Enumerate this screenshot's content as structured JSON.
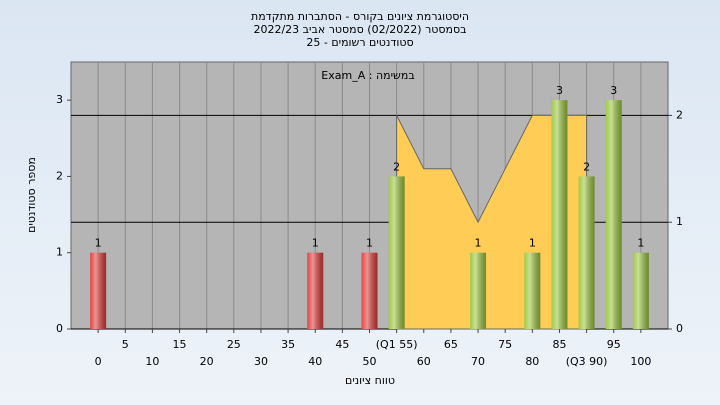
{
  "chart_data": {
    "type": "bar",
    "title": [
      "היסטוגרמת ציונים בקורס - הסתברות מתקדמת",
      "בסמסטר  (02/2022)  סמסטר אביב 2022/23",
      "סטודנטים רשומים - 25"
    ],
    "annotation": "Exam_A : במשימה",
    "xlabel": "טווח ציונים",
    "ylabel": "מספר סטודנטים",
    "x": [
      0,
      40,
      50,
      55,
      70,
      80,
      85,
      90,
      95,
      100
    ],
    "values": [
      1,
      1,
      1,
      2,
      1,
      1,
      3,
      2,
      3,
      1
    ],
    "colors": [
      "#e03a3a",
      "#e03a3a",
      "#e03a3a",
      "#9cc63e",
      "#9cc63e",
      "#9cc63e",
      "#9cc63e",
      "#9cc63e",
      "#9cc63e",
      "#9cc63e"
    ],
    "area": {
      "x": [
        55,
        60,
        65,
        70,
        75,
        80,
        85,
        90
      ],
      "values": [
        2,
        1.5,
        1.5,
        1,
        1.5,
        2,
        2,
        2
      ],
      "color": "#ffcc55",
      "axis": "y2"
    },
    "xlim": [
      -5,
      105
    ],
    "xticks": [
      0,
      5,
      10,
      15,
      20,
      25,
      30,
      35,
      40,
      45,
      50,
      {
        "value": 55,
        "label": "(Q1 55)"
      },
      60,
      65,
      70,
      75,
      80,
      85,
      {
        "value": 90,
        "label": "(Q3 90)"
      },
      95,
      100
    ],
    "ylim": [
      0,
      3.5
    ],
    "yticks": [
      0,
      1,
      2,
      3
    ],
    "y2lim": [
      0,
      2.5
    ],
    "y2ticks": [
      0,
      1,
      2
    ],
    "grid": true
  }
}
